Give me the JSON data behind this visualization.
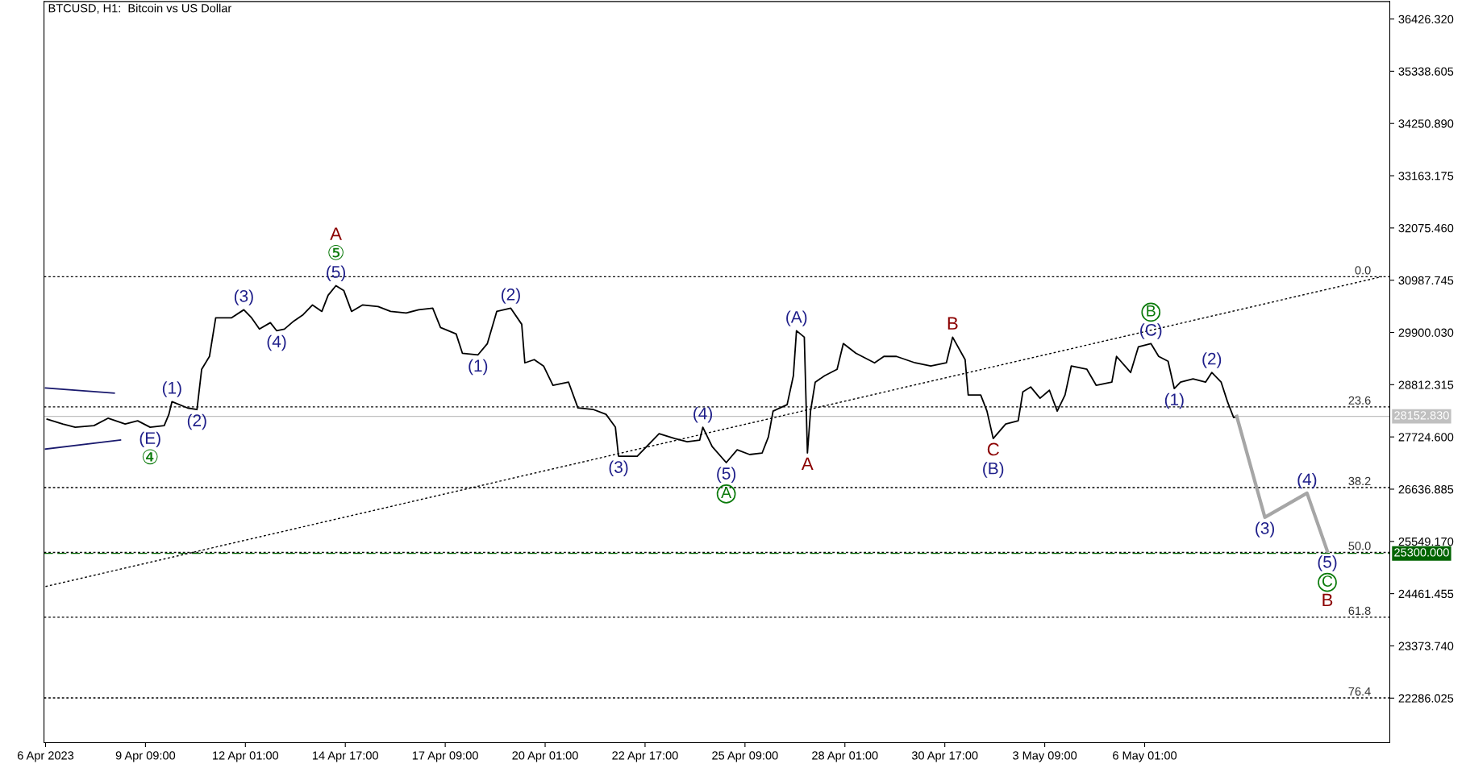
{
  "chart_data": {
    "type": "line",
    "title": "BTCUSD, H1:  Bitcoin vs US Dollar",
    "series": [
      {
        "color": "#000000",
        "line_style": "solid",
        "x": [
          "2023-04-06T18:00",
          "2023-04-07T04:00",
          "2023-04-07T12:00",
          "2023-04-08T00:00",
          "2023-04-08T09:00",
          "2023-04-08T20:00",
          "2023-04-09T04:00",
          "2023-04-09T12:00",
          "2023-04-09T21:00",
          "2023-04-10T00:00",
          "2023-04-10T02:00",
          "2023-04-10T12:00",
          "2023-04-10T18:00",
          "2023-04-10T21:00",
          "2023-04-11T02:00",
          "2023-04-11T06:00",
          "2023-04-11T16:00",
          "2023-04-12T00:00",
          "2023-04-12T05:00",
          "2023-04-12T10:00",
          "2023-04-12T17:00",
          "2023-04-12T21:00",
          "2023-04-13T02:00",
          "2023-04-13T08:00",
          "2023-04-13T14:00",
          "2023-04-13T20:00",
          "2023-04-14T02:00",
          "2023-04-14T06:00",
          "2023-04-14T11:00",
          "2023-04-14T16:00",
          "2023-04-14T21:00",
          "2023-04-15T04:00",
          "2023-04-15T14:00",
          "2023-04-15T22:00",
          "2023-04-16T08:00",
          "2023-04-16T16:00",
          "2023-04-17T01:00",
          "2023-04-17T06:00",
          "2023-04-17T16:00",
          "2023-04-17T20:00",
          "2023-04-18T06:00",
          "2023-04-18T12:00",
          "2023-04-18T18:00",
          "2023-04-19T03:00",
          "2023-04-19T10:00",
          "2023-04-19T12:00",
          "2023-04-19T18:00",
          "2023-04-20T00:00",
          "2023-04-20T06:00",
          "2023-04-20T16:00",
          "2023-04-20T22:00",
          "2023-04-21T08:00",
          "2023-04-21T16:00",
          "2023-04-21T22:00",
          "2023-04-22T00:00",
          "2023-04-22T12:00",
          "2023-04-22T18:00",
          "2023-04-23T02:00",
          "2023-04-23T12:00",
          "2023-04-23T20:00",
          "2023-04-24T04:00",
          "2023-04-24T06:00",
          "2023-04-24T12:00",
          "2023-04-24T21:00",
          "2023-04-25T04:00",
          "2023-04-25T12:00",
          "2023-04-25T20:00",
          "2023-04-26T00:00",
          "2023-04-26T03:00",
          "2023-04-26T12:00",
          "2023-04-26T16:00",
          "2023-04-26T18:00",
          "2023-04-26T23:00",
          "2023-04-27T00:00",
          "2023-04-27T01:00",
          "2023-04-27T03:00",
          "2023-04-27T06:00",
          "2023-04-27T12:00",
          "2023-04-27T20:00",
          "2023-04-28T00:00",
          "2023-04-28T08:00",
          "2023-04-28T20:00",
          "2023-04-29T02:00",
          "2023-04-29T10:00",
          "2023-04-29T22:00",
          "2023-04-30T08:00",
          "2023-04-30T18:00",
          "2023-04-30T22:00",
          "2023-05-01T06:00",
          "2023-05-01T08:00",
          "2023-05-01T16:00",
          "2023-05-01T20:00",
          "2023-05-02T00:00",
          "2023-05-02T08:00",
          "2023-05-02T16:00",
          "2023-05-02T19:00",
          "2023-05-03T00:00",
          "2023-05-03T06:00",
          "2023-05-03T12:00",
          "2023-05-03T17:00",
          "2023-05-03T22:00",
          "2023-05-04T02:00",
          "2023-05-04T12:00",
          "2023-05-04T18:00",
          "2023-05-05T04:00",
          "2023-05-05T07:00",
          "2023-05-05T16:00",
          "2023-05-05T21:00",
          "2023-05-06T05:00",
          "2023-05-06T10:00",
          "2023-05-06T16:00",
          "2023-05-06T20:00",
          "2023-05-07T00:00",
          "2023-05-07T08:00",
          "2023-05-07T16:00",
          "2023-05-07T20:00",
          "2023-05-08T02:00",
          "2023-05-08T06:00",
          "2023-05-08T10:00",
          "2023-05-08T12:00"
        ],
        "values": [
          28094,
          27994,
          27927,
          27960,
          28114,
          27994,
          28061,
          27927,
          27960,
          28195,
          28460,
          28327,
          28294,
          29133,
          29401,
          30204,
          30204,
          30372,
          30204,
          29970,
          30104,
          29937,
          29970,
          30137,
          30271,
          30472,
          30338,
          30673,
          30874,
          30774,
          30338,
          30472,
          30439,
          30338,
          30305,
          30372,
          30405,
          30003,
          29869,
          29467,
          29434,
          29668,
          30338,
          30405,
          30070,
          29267,
          29334,
          29200,
          28798,
          28865,
          28329,
          28294,
          28195,
          27927,
          27324,
          27324,
          27525,
          27793,
          27692,
          27625,
          27659,
          27927,
          27525,
          27190,
          27458,
          27358,
          27391,
          27726,
          28262,
          28396,
          28999,
          29936,
          29802,
          28597,
          27391,
          28262,
          28865,
          28999,
          29133,
          29668,
          29467,
          29267,
          29401,
          29401,
          29267,
          29200,
          29267,
          29802,
          29334,
          28597,
          28597,
          28262,
          27692,
          27994,
          28061,
          28664,
          28765,
          28530,
          28697,
          28262,
          28597,
          29200,
          29133,
          28798,
          28865,
          29401,
          29066,
          29602,
          29668,
          29401,
          29300,
          28731,
          28865,
          28932,
          28865,
          29066,
          28865,
          28463,
          28128,
          28153
        ]
      },
      {
        "color": "#a6a6a6",
        "line_style": "solid",
        "x": [
          "2023-05-08T12:00",
          "2023-05-09T06:00",
          "2023-05-10T09:00",
          "2023-05-10T22:00"
        ],
        "values": [
          28153,
          26052,
          26554,
          25348
        ]
      },
      {
        "color": "#000000",
        "line_style": "dotted",
        "x": [
          "2023-04-06T17:00",
          "2023-05-12T09:00"
        ],
        "values": [
          24610,
          31062
        ]
      },
      {
        "color": "#1a1a6e",
        "line_style": "solid",
        "x": [
          "2023-04-06T17:00",
          "2023-04-08T13:00"
        ],
        "values": [
          28744,
          28637
        ]
      },
      {
        "color": "#1a1a6e",
        "line_style": "solid",
        "x": [
          "2023-04-06T17:00",
          "2023-04-08T17:00"
        ],
        "values": [
          27471,
          27659
        ]
      }
    ],
    "xlim": [
      "2023-04-06T16:00",
      "2023-05-12T14:00"
    ],
    "xticks": [
      {
        "value": "2023-04-06T17:00",
        "label": "6 Apr 2023"
      },
      {
        "value": "2023-04-09T09:00",
        "label": "9 Apr 09:00"
      },
      {
        "value": "2023-04-12T01:00",
        "label": "12 Apr 01:00"
      },
      {
        "value": "2023-04-14T17:00",
        "label": "14 Apr 17:00"
      },
      {
        "value": "2023-04-17T09:00",
        "label": "17 Apr 09:00"
      },
      {
        "value": "2023-04-20T01:00",
        "label": "20 Apr 01:00"
      },
      {
        "value": "2023-04-22T17:00",
        "label": "22 Apr 17:00"
      },
      {
        "value": "2023-04-25T09:00",
        "label": "25 Apr 09:00"
      },
      {
        "value": "2023-04-28T01:00",
        "label": "28 Apr 01:00"
      },
      {
        "value": "2023-04-30T17:00",
        "label": "30 Apr 17:00"
      },
      {
        "value": "2023-05-03T09:00",
        "label": "3 May 09:00"
      },
      {
        "value": "2023-05-06T01:00",
        "label": "6 May 01:00"
      }
    ],
    "ylim": [
      21360,
      36790
    ],
    "yticks": [
      {
        "value": 22286.025,
        "label": "22286.025"
      },
      {
        "value": 23373.74,
        "label": "23373.740"
      },
      {
        "value": 24461.455,
        "label": "24461.455"
      },
      {
        "value": 25549.17,
        "label": "25549.170"
      },
      {
        "value": 26636.885,
        "label": "26636.885"
      },
      {
        "value": 27724.6,
        "label": "27724.600"
      },
      {
        "value": 28812.315,
        "label": "28812.315"
      },
      {
        "value": 29900.03,
        "label": "29900.030"
      },
      {
        "value": 30987.745,
        "label": "30987.745"
      },
      {
        "value": 32075.46,
        "label": "32075.460"
      },
      {
        "value": 33163.175,
        "label": "33163.175"
      },
      {
        "value": 34250.89,
        "label": "34250.890"
      },
      {
        "value": 35338.605,
        "label": "35338.605"
      },
      {
        "value": 36426.32,
        "label": "36426.320"
      }
    ],
    "ref_lines": [
      {
        "axis": "y",
        "value": 31060,
        "color": "#000000",
        "line_style": "dotted"
      },
      {
        "axis": "y",
        "value": 28350,
        "color": "#000000",
        "line_style": "dotted"
      },
      {
        "axis": "y",
        "value": 26670,
        "color": "#000000",
        "line_style": "dotted"
      },
      {
        "axis": "y",
        "value": 25320,
        "color": "#000000",
        "line_style": "dotted"
      },
      {
        "axis": "y",
        "value": 23970,
        "color": "#000000",
        "line_style": "dotted"
      },
      {
        "axis": "y",
        "value": 22290,
        "color": "#000000",
        "line_style": "dotted"
      },
      {
        "axis": "y",
        "value": 28152.83,
        "label": "28152.830",
        "color": "#c0c0c0",
        "line_style": "solid"
      },
      {
        "axis": "y",
        "value": 25300,
        "label": "25300.000",
        "color": "#006400",
        "line_style": "dashed"
      }
    ],
    "annotations": [
      {
        "text": "0.0",
        "x": "2023-05-12T02:00",
        "y": 31060
      },
      {
        "text": "23.6",
        "x": "2023-05-12T02:00",
        "y": 28350
      },
      {
        "text": "38.2",
        "x": "2023-05-12T02:00",
        "y": 26670
      },
      {
        "text": "50.0",
        "x": "2023-05-12T02:00",
        "y": 25320
      },
      {
        "text": "61.8",
        "x": "2023-05-12T02:00",
        "y": 23970
      },
      {
        "text": "76.4",
        "x": "2023-05-12T02:00",
        "y": 22290
      },
      {
        "text": "(5)",
        "x": "2023-04-14T11:00",
        "y": 30874
      },
      {
        "text": "⑤",
        "x": "2023-04-14T11:00",
        "y": 30874
      },
      {
        "text": "A",
        "x": "2023-04-14T11:00",
        "y": 30874
      },
      {
        "text": "(3)",
        "x": "2023-04-12T00:00",
        "y": 30372
      },
      {
        "text": "(4)",
        "x": "2023-04-12T21:00",
        "y": 29937
      },
      {
        "text": "(1)",
        "x": "2023-04-10T02:00",
        "y": 28460
      },
      {
        "text": "(2)",
        "x": "2023-04-10T18:00",
        "y": 28294
      },
      {
        "text": "(E)",
        "x": "2023-04-09T12:00",
        "y": 27927
      },
      {
        "text": "④",
        "x": "2023-04-09T12:00",
        "y": 27927
      },
      {
        "text": "(1)",
        "x": "2023-04-18T06:00",
        "y": 29434
      },
      {
        "text": "(2)",
        "x": "2023-04-19T03:00",
        "y": 30405
      },
      {
        "text": "(3)",
        "x": "2023-04-22T00:00",
        "y": 27324
      },
      {
        "text": "(4)",
        "x": "2023-04-24T06:00",
        "y": 27927
      },
      {
        "text": "(5)",
        "x": "2023-04-24T21:00",
        "y": 27190
      },
      {
        "text": "A",
        "x": "2023-04-24T21:00",
        "y": 27190
      },
      {
        "text": "(A)",
        "x": "2023-04-26T18:00",
        "y": 29936
      },
      {
        "text": "A",
        "x": "2023-04-27T01:00",
        "y": 27391
      },
      {
        "text": "B",
        "x": "2023-04-30T22:00",
        "y": 29802
      },
      {
        "text": "C",
        "x": "2023-05-02T00:00",
        "y": 27692
      },
      {
        "text": "(B)",
        "x": "2023-05-02T00:00",
        "y": 27692
      },
      {
        "text": "(C)",
        "x": "2023-05-06T05:00",
        "y": 29668
      },
      {
        "text": "B",
        "x": "2023-05-06T05:00",
        "y": 29668
      },
      {
        "text": "(1)",
        "x": "2023-05-06T20:00",
        "y": 28731
      },
      {
        "text": "(2)",
        "x": "2023-05-07T20:00",
        "y": 29066
      },
      {
        "text": "(3)",
        "x": "2023-05-09T06:00",
        "y": 26052
      },
      {
        "text": "(4)",
        "x": "2023-05-10T09:00",
        "y": 26554
      },
      {
        "text": "(5)",
        "x": "2023-05-10T22:00",
        "y": 25348
      },
      {
        "text": "C",
        "x": "2023-05-10T22:00",
        "y": 25348
      },
      {
        "text": "B",
        "x": "2023-05-10T22:00",
        "y": 25348
      }
    ],
    "grid": false,
    "legend": false,
    "marker": "none"
  }
}
